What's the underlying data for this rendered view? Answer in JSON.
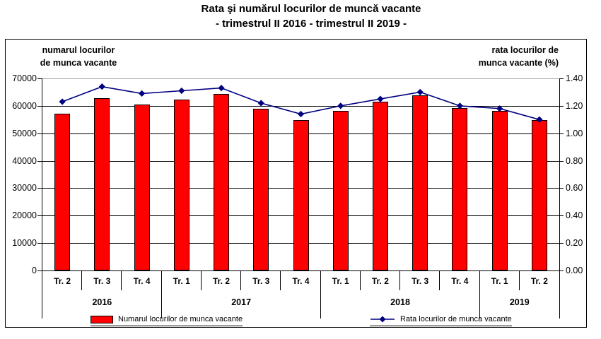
{
  "page": {
    "background": "#FFFFFF"
  },
  "chart_data": {
    "type": "combo",
    "combo_types": [
      "bar",
      "line"
    ],
    "title": "Rata şi numărul locurilor de muncă vacante",
    "subtitle": "- trimestrul II 2016 - trimestrul II 2019 -",
    "left_axis_title_line1": "numarul locurilor",
    "left_axis_title_line2": "de munca vacante",
    "right_axis_title_line1": "rata locurilor de",
    "right_axis_title_line2": "munca vacante (%)",
    "categories": [
      "Tr. 2",
      "Tr. 3",
      "Tr. 4",
      "Tr. 1",
      "Tr. 2",
      "Tr. 3",
      "Tr. 4",
      "Tr. 1",
      "Tr. 2",
      "Tr. 3",
      "Tr. 4",
      "Tr. 1",
      "Tr. 2"
    ],
    "year_groups": [
      {
        "label": "2016",
        "start": 0,
        "span": 3
      },
      {
        "label": "2017",
        "start": 3,
        "span": 4
      },
      {
        "label": "2018",
        "start": 7,
        "span": 4
      },
      {
        "label": "2019",
        "start": 11,
        "span": 2
      }
    ],
    "series": [
      {
        "name": "Numarul locurilor de munca vacante",
        "type": "bar",
        "axis": "left",
        "color": "#FF0000",
        "values": [
          57100,
          62900,
          60500,
          62200,
          64300,
          59000,
          54800,
          58100,
          61600,
          63900,
          59200,
          58300,
          54900
        ]
      },
      {
        "name": "Rata locurilor de munca vacante",
        "type": "line",
        "axis": "right",
        "color": "#000080",
        "values": [
          1.23,
          1.34,
          1.29,
          1.31,
          1.33,
          1.22,
          1.14,
          1.2,
          1.25,
          1.3,
          1.2,
          1.18,
          1.1
        ]
      }
    ],
    "left_axis": {
      "min": 0,
      "max": 70000,
      "step": 10000,
      "tick_labels": [
        "70000",
        "60000",
        "50000",
        "40000",
        "30000",
        "20000",
        "10000",
        "0"
      ]
    },
    "right_axis": {
      "min": 0,
      "max": 1.4,
      "step": 0.2,
      "tick_labels": [
        "1.40",
        "1.20",
        "1.00",
        "0.80",
        "0.60",
        "0.40",
        "0.20",
        "0.00"
      ]
    },
    "grid": true,
    "legend_position": "bottom"
  },
  "colors": {
    "bar": "#FF0000",
    "line": "#000080",
    "gridline": "#000000",
    "plot_top_line": "#A6A6A6",
    "frame_border": "#000000"
  }
}
